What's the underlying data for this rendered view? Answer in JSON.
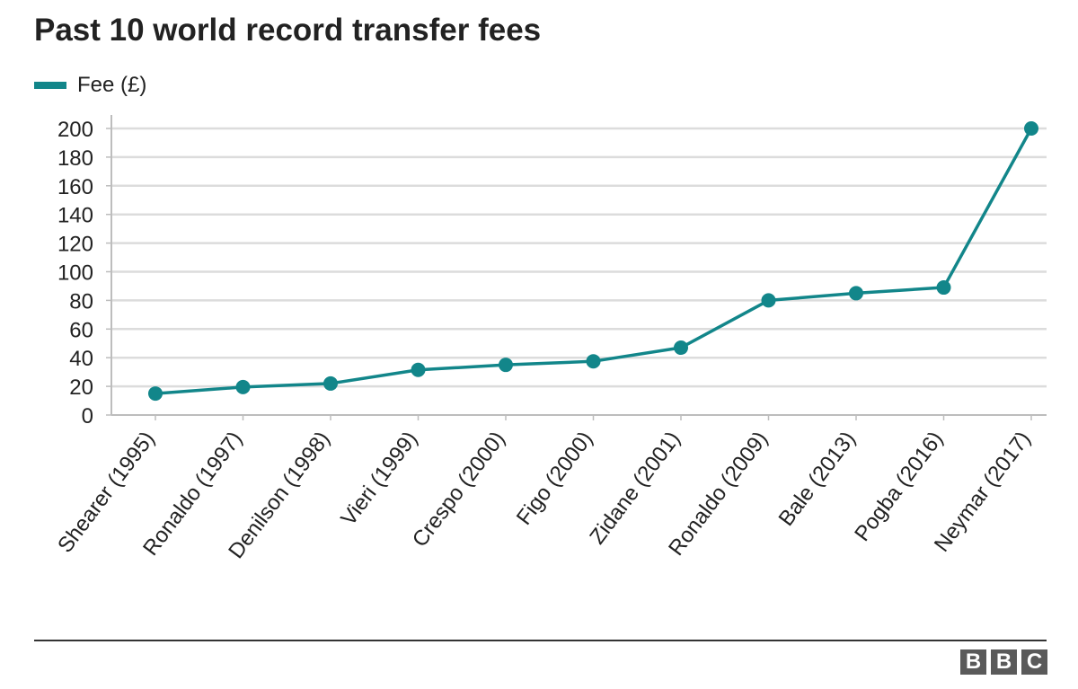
{
  "title": "Past 10 world record transfer fees",
  "legend": {
    "label": "Fee (£)"
  },
  "logo": {
    "letters": [
      "B",
      "B",
      "C"
    ]
  },
  "colors": {
    "series": "#12868a",
    "grid": "#dcdcdc",
    "axis": "#bdbdbd",
    "text": "#222222",
    "logo": "#5a5a5a"
  },
  "chart_data": {
    "type": "line",
    "title": "Past 10 world record transfer fees",
    "xlabel": "",
    "ylabel": "",
    "categories": [
      "Shearer (1995)",
      "Ronaldo (1997)",
      "Denilson (1998)",
      "Vieri (1999)",
      "Crespo (2000)",
      "Figo (2000)",
      "Zidane (2001)",
      "Ronaldo (2009)",
      "Bale (2013)",
      "Pogba (2016)",
      "Neymar (2017)"
    ],
    "series": [
      {
        "name": "Fee (£)",
        "values": [
          15,
          19.5,
          22,
          31.5,
          35,
          37.5,
          47,
          80,
          85,
          89,
          200
        ]
      }
    ],
    "ylim": [
      0,
      200
    ],
    "yticks": [
      0,
      20,
      40,
      60,
      80,
      100,
      120,
      140,
      160,
      180,
      200
    ],
    "grid": true,
    "legend": "top-left"
  }
}
